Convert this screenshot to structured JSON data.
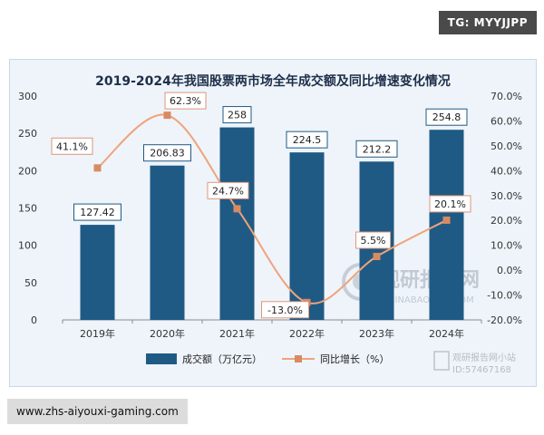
{
  "badges": {
    "tg": "TG: MYYJJPP",
    "url": "www.zhs-aiyouxi-gaming.com"
  },
  "watermark": {
    "brand": "观研报告网",
    "domain": "CHINABAOGAO.COM",
    "small": "观研报告网小站",
    "id": "ID:57467168"
  },
  "colors": {
    "bar": "#1f5a84",
    "bar_label_border": "#1f5a84",
    "line": "#f0a37a",
    "marker_fill": "#d98a63",
    "line_label_border": "#e0957a",
    "title": "#1e2f4a"
  },
  "chart_data": {
    "type": "bar",
    "title": "2019-2024年我国股票两市场全年成交额及同比增速变化情况",
    "categories": [
      "2019年",
      "2020年",
      "2021年",
      "2022年",
      "2023年",
      "2024年"
    ],
    "series": [
      {
        "name": "成交额（万亿元）",
        "type": "bar",
        "axis": "left",
        "values": [
          127.42,
          206.83,
          258,
          224.5,
          212.2,
          254.8
        ],
        "labels": [
          "127.42",
          "206.83",
          "258",
          "224.5",
          "212.2",
          "254.8"
        ]
      },
      {
        "name": "同比增长（%）",
        "type": "line",
        "axis": "right",
        "values": [
          41.1,
          62.3,
          24.7,
          -13.0,
          5.5,
          20.1
        ],
        "labels": [
          "41.1%",
          "62.3%",
          "24.7%",
          "-13.0%",
          "5.5%",
          "20.1%"
        ]
      }
    ],
    "y_left": {
      "min": 0,
      "max": 300,
      "ticks": [
        "0",
        "50",
        "100",
        "150",
        "200",
        "250",
        "300"
      ]
    },
    "y_right": {
      "min": -20,
      "max": 70,
      "ticks": [
        "-20.0%",
        "-10.0%",
        "0.0%",
        "10.0%",
        "20.0%",
        "30.0%",
        "40.0%",
        "50.0%",
        "60.0%",
        "70.0%"
      ]
    },
    "legend_position": "bottom",
    "grid": false
  }
}
